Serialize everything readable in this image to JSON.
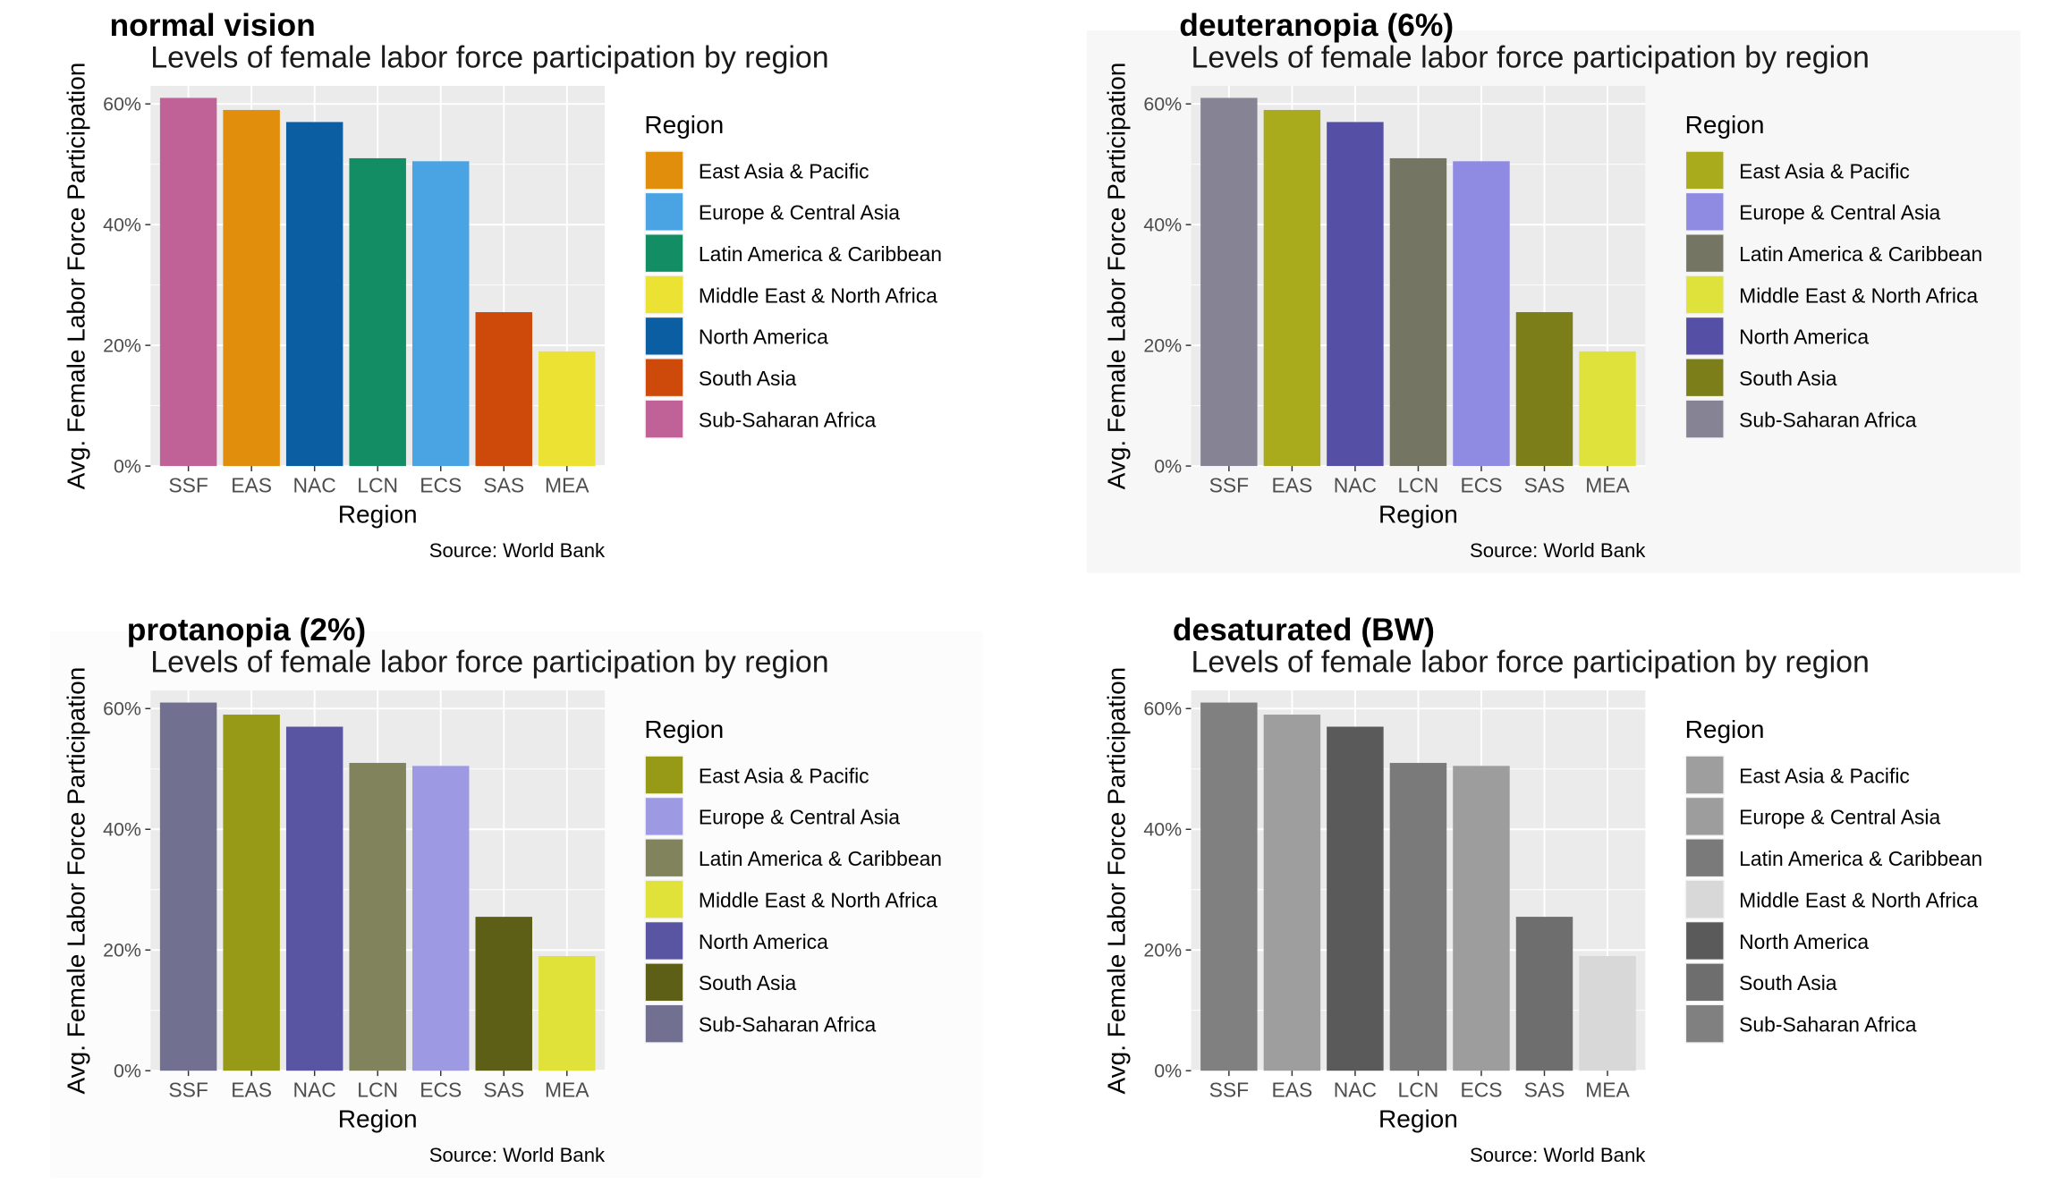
{
  "chart_data": [
    {
      "type": "bar",
      "panel_heading": "normal vision",
      "title": "Levels of female labor force participation by region",
      "xlabel": "Region",
      "ylabel": "Avg. Female Labor Force Participation",
      "caption": "Source: World Bank",
      "categories": [
        "SSF",
        "EAS",
        "NAC",
        "LCN",
        "ECS",
        "SAS",
        "MEA"
      ],
      "values": [
        61,
        59,
        57,
        51,
        50.5,
        25.5,
        19
      ],
      "bar_colors": [
        "#c06298",
        "#e08e0b",
        "#0c5ea3",
        "#138d63",
        "#4aa3e2",
        "#cd4a0a",
        "#ece233"
      ],
      "ylim": [
        0,
        63
      ],
      "yticks": [
        0,
        20,
        40,
        60
      ],
      "ytick_labels": [
        "0%",
        "20%",
        "40%",
        "60%"
      ],
      "grid": true,
      "panel_background": "#ffffff",
      "legend": {
        "title": "Region",
        "position": "right",
        "items": [
          {
            "label": "East Asia & Pacific",
            "color": "#e08e0b"
          },
          {
            "label": "Europe & Central Asia",
            "color": "#4aa3e2"
          },
          {
            "label": "Latin America & Caribbean",
            "color": "#138d63"
          },
          {
            "label": "Middle East & North Africa",
            "color": "#ece233"
          },
          {
            "label": "North America",
            "color": "#0c5ea3"
          },
          {
            "label": "South Asia",
            "color": "#cd4a0a"
          },
          {
            "label": "Sub-Saharan Africa",
            "color": "#c06298"
          }
        ]
      }
    },
    {
      "type": "bar",
      "panel_heading": "deuteranopia (6%)",
      "title": "Levels of female labor force participation by region",
      "xlabel": "Region",
      "ylabel": "Avg. Female Labor Force Participation",
      "caption": "Source: World Bank",
      "categories": [
        "SSF",
        "EAS",
        "NAC",
        "LCN",
        "ECS",
        "SAS",
        "MEA"
      ],
      "values": [
        61,
        59,
        57,
        51,
        50.5,
        25.5,
        19
      ],
      "bar_colors": [
        "#868494",
        "#a9aa1c",
        "#554fa5",
        "#747563",
        "#8f8be2",
        "#7c7f19",
        "#e0e23c"
      ],
      "ylim": [
        0,
        63
      ],
      "yticks": [
        0,
        20,
        40,
        60
      ],
      "ytick_labels": [
        "0%",
        "20%",
        "40%",
        "60%"
      ],
      "grid": true,
      "panel_background": "#f7f7f7",
      "legend": {
        "title": "Region",
        "position": "right",
        "items": [
          {
            "label": "East Asia & Pacific",
            "color": "#a9aa1c"
          },
          {
            "label": "Europe & Central Asia",
            "color": "#8f8be2"
          },
          {
            "label": "Latin America & Caribbean",
            "color": "#747563"
          },
          {
            "label": "Middle East & North Africa",
            "color": "#e0e23c"
          },
          {
            "label": "North America",
            "color": "#554fa5"
          },
          {
            "label": "South Asia",
            "color": "#7c7f19"
          },
          {
            "label": "Sub-Saharan Africa",
            "color": "#868494"
          }
        ]
      }
    },
    {
      "type": "bar",
      "panel_heading": "protanopia (2%)",
      "title": "Levels of female labor force participation by region",
      "xlabel": "Region",
      "ylabel": "Avg. Female Labor Force Participation",
      "caption": "Source: World Bank",
      "categories": [
        "SSF",
        "EAS",
        "NAC",
        "LCN",
        "ECS",
        "SAS",
        "MEA"
      ],
      "values": [
        61,
        59,
        57,
        51,
        50.5,
        25.5,
        19
      ],
      "bar_colors": [
        "#727090",
        "#979a17",
        "#5955a3",
        "#81835d",
        "#9d99e3",
        "#5d5f17",
        "#e0e23a"
      ],
      "ylim": [
        0,
        63
      ],
      "yticks": [
        0,
        20,
        40,
        60
      ],
      "ytick_labels": [
        "0%",
        "20%",
        "40%",
        "60%"
      ],
      "grid": true,
      "panel_background": "#fcfcfc",
      "legend": {
        "title": "Region",
        "position": "right",
        "items": [
          {
            "label": "East Asia & Pacific",
            "color": "#979a17"
          },
          {
            "label": "Europe & Central Asia",
            "color": "#9d99e3"
          },
          {
            "label": "Latin America & Caribbean",
            "color": "#81835d"
          },
          {
            "label": "Middle East & North Africa",
            "color": "#e0e23a"
          },
          {
            "label": "North America",
            "color": "#5955a3"
          },
          {
            "label": "South Asia",
            "color": "#5d5f17"
          },
          {
            "label": "Sub-Saharan Africa",
            "color": "#727090"
          }
        ]
      }
    },
    {
      "type": "bar",
      "panel_heading": "desaturated (BW)",
      "title": "Levels of female labor force participation by region",
      "xlabel": "Region",
      "ylabel": "Avg. Female Labor Force Participation",
      "caption": "Source: World Bank",
      "categories": [
        "SSF",
        "EAS",
        "NAC",
        "LCN",
        "ECS",
        "SAS",
        "MEA"
      ],
      "values": [
        61,
        59,
        57,
        51,
        50.5,
        25.5,
        19
      ],
      "bar_colors": [
        "#808080",
        "#9e9e9e",
        "#5a5a5a",
        "#7a7a7a",
        "#9d9d9d",
        "#6e6e6e",
        "#d8d8d8"
      ],
      "ylim": [
        0,
        63
      ],
      "yticks": [
        0,
        20,
        40,
        60
      ],
      "ytick_labels": [
        "0%",
        "20%",
        "40%",
        "60%"
      ],
      "grid": true,
      "panel_background": "#ffffff",
      "legend": {
        "title": "Region",
        "position": "right",
        "items": [
          {
            "label": "East Asia & Pacific",
            "color": "#9e9e9e"
          },
          {
            "label": "Europe & Central Asia",
            "color": "#9d9d9d"
          },
          {
            "label": "Latin America & Caribbean",
            "color": "#7a7a7a"
          },
          {
            "label": "Middle East & North Africa",
            "color": "#d8d8d8"
          },
          {
            "label": "North America",
            "color": "#5a5a5a"
          },
          {
            "label": "South Asia",
            "color": "#6e6e6e"
          },
          {
            "label": "Sub-Saharan Africa",
            "color": "#808080"
          }
        ]
      }
    }
  ]
}
